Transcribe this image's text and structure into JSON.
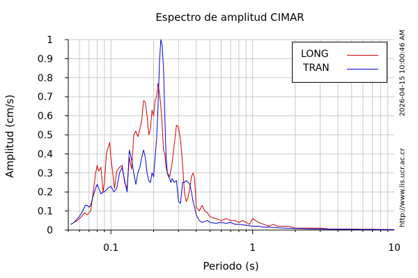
{
  "chart_data": {
    "type": "line",
    "title": "Espectro de amplitud CIMAR",
    "xlabel": "Periodo (s)",
    "ylabel": "Amplitud (cm/s)",
    "xscale": "log",
    "xlim": [
      0.05,
      10
    ],
    "ylim": [
      0,
      1
    ],
    "x_ticks": [
      0.1,
      1,
      10
    ],
    "x_tick_labels": [
      "0.1",
      "1",
      "10"
    ],
    "y_ticks": [
      0,
      0.1,
      0.2,
      0.3,
      0.4,
      0.5,
      0.6,
      0.7,
      0.8,
      0.9,
      1
    ],
    "y_tick_labels": [
      "0",
      "0.1",
      "0.2",
      "0.3",
      "0.4",
      "0.5",
      "0.6",
      "0.7",
      "0.8",
      "0.9",
      "1"
    ],
    "grid": true,
    "legend_position": "top-right",
    "series": [
      {
        "name": "LONG",
        "color": "#cc0000",
        "x": [
          0.052,
          0.055,
          0.058,
          0.062,
          0.065,
          0.068,
          0.072,
          0.075,
          0.078,
          0.08,
          0.082,
          0.085,
          0.088,
          0.09,
          0.093,
          0.096,
          0.098,
          0.1,
          0.103,
          0.106,
          0.11,
          0.115,
          0.12,
          0.125,
          0.13,
          0.135,
          0.14,
          0.145,
          0.15,
          0.155,
          0.16,
          0.165,
          0.17,
          0.175,
          0.18,
          0.185,
          0.19,
          0.195,
          0.2,
          0.205,
          0.21,
          0.215,
          0.22,
          0.225,
          0.23,
          0.235,
          0.24,
          0.245,
          0.25,
          0.255,
          0.26,
          0.27,
          0.28,
          0.29,
          0.3,
          0.31,
          0.32,
          0.33,
          0.34,
          0.35,
          0.36,
          0.37,
          0.38,
          0.39,
          0.4,
          0.42,
          0.44,
          0.46,
          0.48,
          0.5,
          0.55,
          0.6,
          0.65,
          0.7,
          0.75,
          0.8,
          0.85,
          0.9,
          0.95,
          1.0,
          1.05,
          1.1,
          1.2,
          1.3,
          1.4,
          1.5,
          1.6,
          1.8,
          2.0,
          2.3,
          2.6,
          3.0,
          3.5,
          4.0,
          5.0,
          6.0,
          7.0,
          8.0,
          10.0
        ],
        "y": [
          0.03,
          0.04,
          0.05,
          0.07,
          0.09,
          0.08,
          0.1,
          0.2,
          0.3,
          0.34,
          0.31,
          0.33,
          0.2,
          0.25,
          0.4,
          0.44,
          0.46,
          0.38,
          0.3,
          0.22,
          0.31,
          0.33,
          0.34,
          0.25,
          0.22,
          0.38,
          0.32,
          0.5,
          0.52,
          0.49,
          0.53,
          0.58,
          0.68,
          0.67,
          0.6,
          0.5,
          0.53,
          0.63,
          0.6,
          0.68,
          0.7,
          0.77,
          0.72,
          0.65,
          0.55,
          0.42,
          0.4,
          0.33,
          0.3,
          0.29,
          0.28,
          0.35,
          0.45,
          0.55,
          0.54,
          0.47,
          0.35,
          0.2,
          0.15,
          0.17,
          0.22,
          0.28,
          0.3,
          0.27,
          0.12,
          0.1,
          0.13,
          0.1,
          0.09,
          0.07,
          0.06,
          0.05,
          0.06,
          0.05,
          0.05,
          0.04,
          0.05,
          0.04,
          0.03,
          0.06,
          0.05,
          0.04,
          0.03,
          0.02,
          0.03,
          0.02,
          0.02,
          0.02,
          0.01,
          0.01,
          0.01,
          0.01,
          0.005,
          0.005,
          0.005,
          0.004,
          0.004,
          0.003,
          0.003
        ]
      },
      {
        "name": "TRAN",
        "color": "#0000cc",
        "x": [
          0.052,
          0.055,
          0.058,
          0.061,
          0.063,
          0.066,
          0.068,
          0.07,
          0.072,
          0.075,
          0.078,
          0.08,
          0.082,
          0.085,
          0.088,
          0.09,
          0.095,
          0.1,
          0.105,
          0.11,
          0.115,
          0.12,
          0.125,
          0.13,
          0.135,
          0.14,
          0.145,
          0.15,
          0.155,
          0.16,
          0.165,
          0.17,
          0.175,
          0.18,
          0.185,
          0.19,
          0.195,
          0.2,
          0.205,
          0.21,
          0.215,
          0.22,
          0.225,
          0.23,
          0.235,
          0.24,
          0.245,
          0.25,
          0.255,
          0.26,
          0.265,
          0.27,
          0.28,
          0.29,
          0.3,
          0.31,
          0.32,
          0.33,
          0.34,
          0.35,
          0.36,
          0.37,
          0.38,
          0.39,
          0.4,
          0.42,
          0.44,
          0.46,
          0.48,
          0.5,
          0.55,
          0.6,
          0.65,
          0.7,
          0.75,
          0.8,
          0.9,
          1.0,
          1.1,
          1.2,
          1.3,
          1.5,
          1.7,
          2.0,
          2.5,
          3.0,
          4.0,
          5.0,
          6.0,
          8.0,
          10.0
        ],
        "y": [
          0.03,
          0.04,
          0.06,
          0.08,
          0.1,
          0.13,
          0.13,
          0.12,
          0.13,
          0.18,
          0.22,
          0.24,
          0.22,
          0.19,
          0.2,
          0.2,
          0.22,
          0.23,
          0.2,
          0.22,
          0.3,
          0.33,
          0.26,
          0.2,
          0.42,
          0.37,
          0.3,
          0.24,
          0.3,
          0.33,
          0.38,
          0.42,
          0.38,
          0.3,
          0.26,
          0.25,
          0.3,
          0.28,
          0.38,
          0.48,
          0.64,
          0.88,
          1.0,
          0.97,
          0.85,
          0.6,
          0.38,
          0.3,
          0.28,
          0.27,
          0.25,
          0.27,
          0.25,
          0.26,
          0.15,
          0.14,
          0.25,
          0.25,
          0.26,
          0.25,
          0.24,
          0.2,
          0.15,
          0.12,
          0.08,
          0.05,
          0.04,
          0.045,
          0.05,
          0.04,
          0.035,
          0.04,
          0.035,
          0.04,
          0.03,
          0.03,
          0.025,
          0.02,
          0.02,
          0.015,
          0.015,
          0.012,
          0.01,
          0.008,
          0.006,
          0.005,
          0.004,
          0.004,
          0.003,
          0.003,
          0.002
        ]
      }
    ],
    "annotations": {
      "timestamp": "2026-04-15 10:00:46 AM",
      "url": "http://www.lis.ucr.ac.cr"
    }
  }
}
